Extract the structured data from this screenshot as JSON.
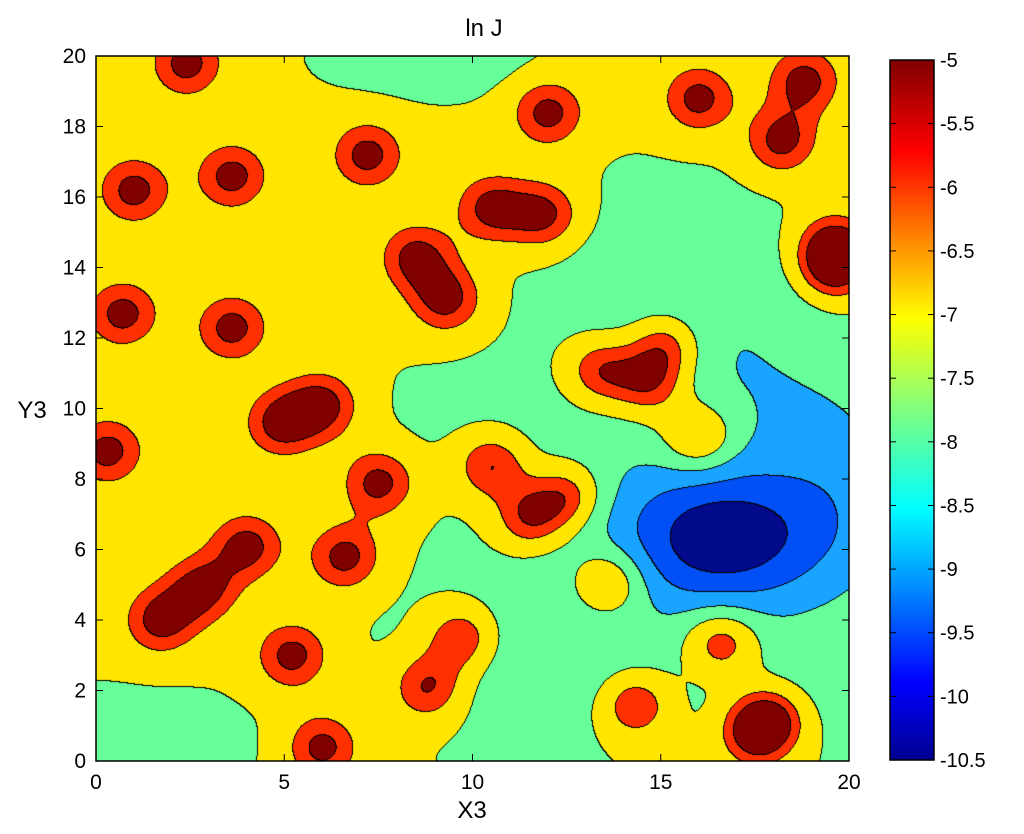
{
  "chart_data": {
    "type": "heatmap",
    "subtype": "filled-contour",
    "title": "ln J",
    "xlabel": "X3",
    "ylabel": "Y3",
    "xlim": [
      0,
      20
    ],
    "ylim": [
      0,
      20
    ],
    "xticks": [
      "0",
      "5",
      "10",
      "15",
      "20"
    ],
    "yticks": [
      "0",
      "2",
      "4",
      "6",
      "8",
      "10",
      "12",
      "14",
      "16",
      "18",
      "20"
    ],
    "colorbar": {
      "range": [
        -10.5,
        -5
      ],
      "ticks": [
        "-5",
        "-5.5",
        "-6",
        "-6.5",
        "-7",
        "-7.5",
        "-8",
        "-8.5",
        "-9",
        "-9.5",
        "-10",
        "-10.5"
      ],
      "colormap": "jet"
    },
    "contour_levels": [
      -10,
      -9,
      -8,
      -7,
      -6,
      -5.3
    ],
    "level_colors": {
      "below_-10": "#000a8a",
      "-10_to_-9": "#0050f5",
      "-9_to_-8": "#19a5ff",
      "-8_to_-7": "#66ff99",
      "-7_to_-6": "#ffe600",
      "-6_to_-5.3": "#ff3000",
      "above_-5.3": "#800000"
    },
    "field": {
      "base_value": -6.9,
      "trough": [
        {
          "x": 16.6,
          "y": 6.3,
          "sx": 2.6,
          "sy": 2.0,
          "depth": 3.6
        },
        {
          "x": 19.8,
          "y": 7.5,
          "sx": 2.2,
          "sy": 3.2,
          "depth": 1.3
        },
        {
          "x": 17.5,
          "y": 10.5,
          "sx": 2.8,
          "sy": 2.4,
          "depth": 0.6
        },
        {
          "x": 15.5,
          "y": 13.0,
          "sx": 3.5,
          "sy": 3.0,
          "depth": 0.9
        },
        {
          "x": 12.0,
          "y": 3.0,
          "sx": 3.5,
          "sy": 2.6,
          "depth": 0.9
        },
        {
          "x": 13.0,
          "y": 7.5,
          "sx": 3.0,
          "sy": 2.5,
          "depth": 0.6
        },
        {
          "x": 10.0,
          "y": 10.0,
          "sx": 2.5,
          "sy": 1.5,
          "depth": 0.3
        },
        {
          "x": 1.0,
          "y": 0.5,
          "sx": 3.0,
          "sy": 1.4,
          "depth": 0.6
        },
        {
          "x": 9.0,
          "y": 20.0,
          "sx": 2.5,
          "sy": 1.0,
          "depth": 0.7
        },
        {
          "x": 18.5,
          "y": 1.8,
          "sx": 2.5,
          "sy": 2.0,
          "depth": 0.5
        }
      ],
      "peaks": [
        {
          "x": 2.4,
          "y": 19.8
        },
        {
          "x": 1.0,
          "y": 16.2
        },
        {
          "x": 3.6,
          "y": 16.6
        },
        {
          "x": 7.2,
          "y": 17.2
        },
        {
          "x": 0.7,
          "y": 12.7
        },
        {
          "x": 3.6,
          "y": 12.3
        },
        {
          "x": 8.5,
          "y": 14.3
        },
        {
          "x": 9.3,
          "y": 13.1
        },
        {
          "x": 10.5,
          "y": 15.7
        },
        {
          "x": 11.9,
          "y": 15.5
        },
        {
          "x": 12.0,
          "y": 18.4
        },
        {
          "x": 16.0,
          "y": 18.8
        },
        {
          "x": 18.8,
          "y": 19.3
        },
        {
          "x": 18.2,
          "y": 17.6
        },
        {
          "x": 19.6,
          "y": 14.6
        },
        {
          "x": 19.6,
          "y": 14.0
        },
        {
          "x": 4.9,
          "y": 9.6
        },
        {
          "x": 6.0,
          "y": 10.1
        },
        {
          "x": 0.3,
          "y": 8.8
        },
        {
          "x": 7.5,
          "y": 7.9
        },
        {
          "x": 4.0,
          "y": 6.1
        },
        {
          "x": 2.8,
          "y": 4.9
        },
        {
          "x": 1.7,
          "y": 4.0
        },
        {
          "x": 6.6,
          "y": 5.8
        },
        {
          "x": 5.2,
          "y": 3.0
        },
        {
          "x": 8.8,
          "y": 2.1
        },
        {
          "x": 9.7,
          "y": 3.5
        },
        {
          "x": 6.0,
          "y": 0.4
        },
        {
          "x": 10.5,
          "y": 8.4
        },
        {
          "x": 11.5,
          "y": 6.9
        },
        {
          "x": 12.5,
          "y": 7.5
        },
        {
          "x": 13.4,
          "y": 11.1
        },
        {
          "x": 14.7,
          "y": 10.7
        },
        {
          "x": 15.1,
          "y": 11.8
        },
        {
          "x": 16.0,
          "y": 9.2
        },
        {
          "x": 13.6,
          "y": 5.1
        },
        {
          "x": 16.6,
          "y": 3.4
        },
        {
          "x": 14.3,
          "y": 1.6
        },
        {
          "x": 17.5,
          "y": 0.8
        },
        {
          "x": 17.9,
          "y": 1.2
        }
      ]
    }
  }
}
